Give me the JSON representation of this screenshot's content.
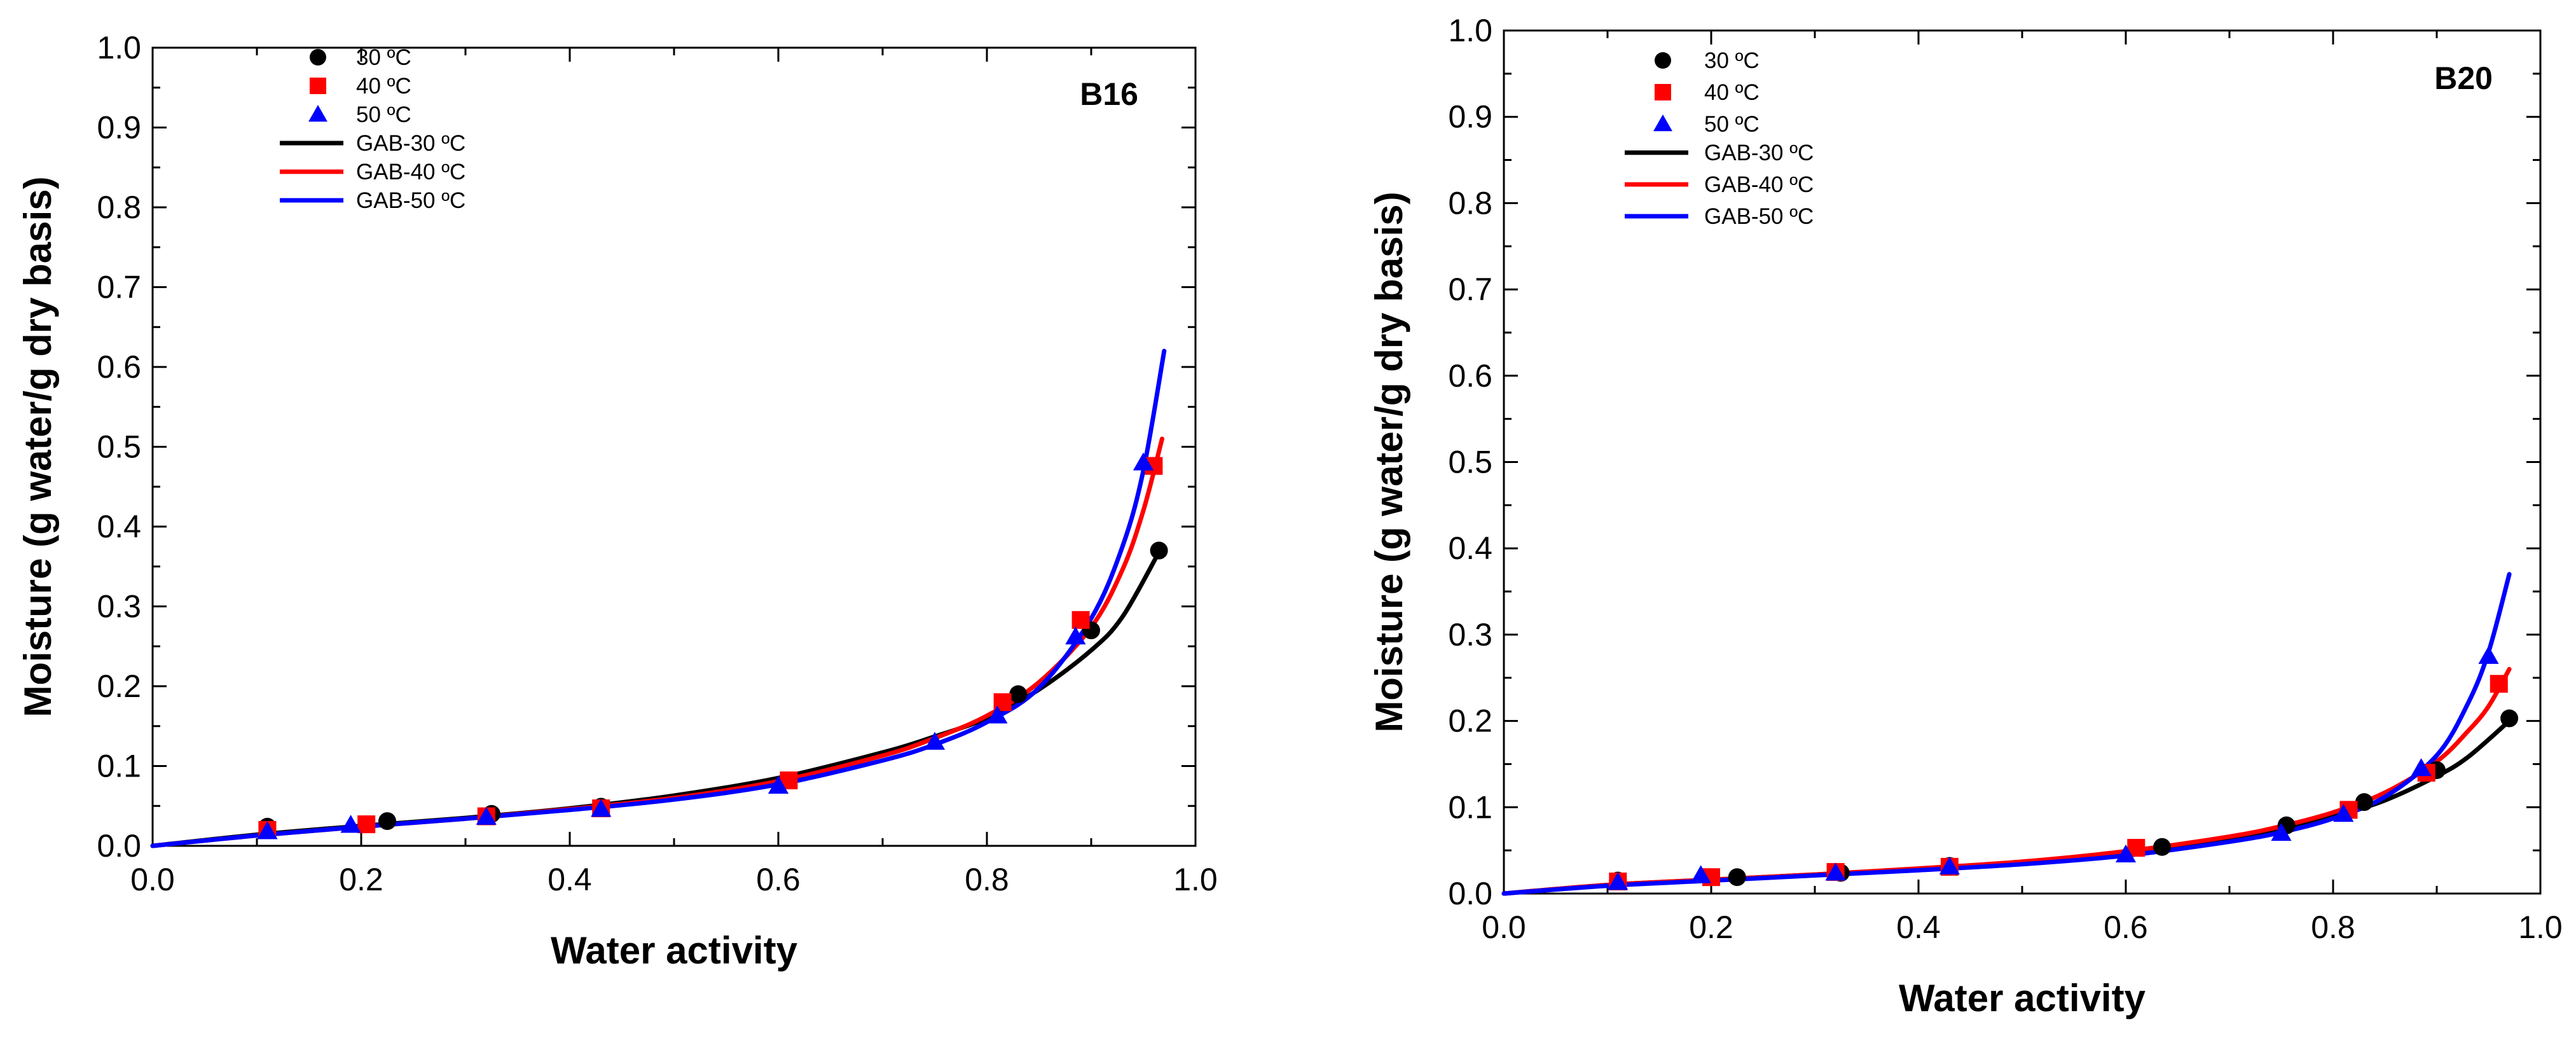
{
  "chart_data": [
    {
      "type": "scatter",
      "panel_label": "B16",
      "xlabel": "Water activity",
      "ylabel": "Moisture (g water/g dry basis)",
      "xlim": [
        0.0,
        1.0
      ],
      "ylim": [
        0.0,
        1.0
      ],
      "xticks": [
        "0.0",
        "0.2",
        "0.4",
        "0.6",
        "0.8",
        "1.0"
      ],
      "yticks": [
        "0.0",
        "0.1",
        "0.2",
        "0.3",
        "0.4",
        "0.5",
        "0.6",
        "0.7",
        "0.8",
        "0.9",
        "1.0"
      ],
      "legend_position": "top-left",
      "series": [
        {
          "name": "30 ºC",
          "kind": "points",
          "marker": "circle",
          "color": "#000000",
          "x": [
            0.11,
            0.225,
            0.325,
            0.43,
            0.83,
            0.9,
            0.965
          ],
          "y": [
            0.024,
            0.031,
            0.04,
            0.049,
            0.19,
            0.27,
            0.37
          ]
        },
        {
          "name": "40 ºC",
          "kind": "points",
          "marker": "square",
          "color": "#ff0000",
          "x": [
            0.11,
            0.205,
            0.32,
            0.43,
            0.61,
            0.815,
            0.89,
            0.96
          ],
          "y": [
            0.02,
            0.027,
            0.037,
            0.047,
            0.082,
            0.18,
            0.283,
            0.476
          ]
        },
        {
          "name": "50 ºC",
          "kind": "points",
          "marker": "triangle",
          "color": "#0000ff",
          "x": [
            0.11,
            0.19,
            0.32,
            0.43,
            0.6,
            0.75,
            0.81,
            0.885,
            0.95
          ],
          "y": [
            0.018,
            0.026,
            0.036,
            0.046,
            0.075,
            0.13,
            0.163,
            0.262,
            0.48
          ]
        },
        {
          "name": "GAB-30 ºC",
          "kind": "line",
          "color": "#000000",
          "x": [
            0.0,
            0.1,
            0.2,
            0.3,
            0.4,
            0.5,
            0.6,
            0.7,
            0.75,
            0.8,
            0.85,
            0.9,
            0.93,
            0.965
          ],
          "y": [
            0.0,
            0.014,
            0.025,
            0.035,
            0.047,
            0.063,
            0.085,
            0.117,
            0.137,
            0.16,
            0.196,
            0.245,
            0.287,
            0.368
          ]
        },
        {
          "name": "GAB-40 ºC",
          "kind": "line",
          "color": "#ff0000",
          "x": [
            0.0,
            0.1,
            0.2,
            0.3,
            0.4,
            0.5,
            0.6,
            0.7,
            0.75,
            0.8,
            0.85,
            0.9,
            0.93,
            0.95,
            0.968
          ],
          "y": [
            0.0,
            0.013,
            0.024,
            0.034,
            0.046,
            0.06,
            0.081,
            0.113,
            0.135,
            0.163,
            0.205,
            0.274,
            0.346,
            0.42,
            0.51
          ]
        },
        {
          "name": "GAB-50 ºC",
          "kind": "line",
          "color": "#0000ff",
          "x": [
            0.0,
            0.1,
            0.2,
            0.3,
            0.4,
            0.5,
            0.6,
            0.7,
            0.75,
            0.8,
            0.85,
            0.9,
            0.93,
            0.95,
            0.97
          ],
          "y": [
            0.0,
            0.013,
            0.024,
            0.034,
            0.045,
            0.058,
            0.077,
            0.107,
            0.127,
            0.155,
            0.198,
            0.285,
            0.375,
            0.47,
            0.62
          ]
        }
      ]
    },
    {
      "type": "scatter",
      "panel_label": "B20",
      "xlabel": "Water activity",
      "ylabel": "Moisture (g water/g dry basis)",
      "xlim": [
        0.0,
        1.0
      ],
      "ylim": [
        0.0,
        1.0
      ],
      "xticks": [
        "0.0",
        "0.2",
        "0.4",
        "0.6",
        "0.8",
        "1.0"
      ],
      "yticks": [
        "0.0",
        "0.1",
        "0.2",
        "0.3",
        "0.4",
        "0.5",
        "0.6",
        "0.7",
        "0.8",
        "0.9",
        "1.0"
      ],
      "legend_position": "top-left",
      "series": [
        {
          "name": "30 ºC",
          "kind": "points",
          "marker": "circle",
          "color": "#000000",
          "x": [
            0.11,
            0.225,
            0.325,
            0.43,
            0.635,
            0.755,
            0.83,
            0.9,
            0.97
          ],
          "y": [
            0.015,
            0.019,
            0.024,
            0.032,
            0.054,
            0.079,
            0.106,
            0.143,
            0.203
          ]
        },
        {
          "name": "40 ºC",
          "kind": "points",
          "marker": "square",
          "color": "#ff0000",
          "x": [
            0.11,
            0.2,
            0.32,
            0.43,
            0.61,
            0.815,
            0.89,
            0.96
          ],
          "y": [
            0.014,
            0.019,
            0.025,
            0.031,
            0.053,
            0.097,
            0.14,
            0.243
          ]
        },
        {
          "name": "50 ºC",
          "kind": "points",
          "marker": "triangle",
          "color": "#0000ff",
          "x": [
            0.11,
            0.19,
            0.32,
            0.43,
            0.6,
            0.75,
            0.81,
            0.885,
            0.95
          ],
          "y": [
            0.013,
            0.021,
            0.024,
            0.031,
            0.045,
            0.07,
            0.092,
            0.145,
            0.275
          ]
        },
        {
          "name": "GAB-30 ºC",
          "kind": "line",
          "color": "#000000",
          "x": [
            0.0,
            0.1,
            0.2,
            0.3,
            0.4,
            0.5,
            0.6,
            0.7,
            0.75,
            0.8,
            0.85,
            0.9,
            0.93,
            0.97
          ],
          "y": [
            0.0,
            0.01,
            0.016,
            0.022,
            0.028,
            0.036,
            0.047,
            0.063,
            0.074,
            0.089,
            0.108,
            0.136,
            0.158,
            0.2
          ]
        },
        {
          "name": "GAB-40 ºC",
          "kind": "line",
          "color": "#ff0000",
          "x": [
            0.0,
            0.1,
            0.2,
            0.3,
            0.4,
            0.5,
            0.6,
            0.7,
            0.75,
            0.8,
            0.85,
            0.9,
            0.93,
            0.95,
            0.97
          ],
          "y": [
            0.0,
            0.01,
            0.016,
            0.022,
            0.029,
            0.037,
            0.049,
            0.066,
            0.078,
            0.094,
            0.117,
            0.153,
            0.188,
            0.217,
            0.26
          ]
        },
        {
          "name": "GAB-50 ºC",
          "kind": "line",
          "color": "#0000ff",
          "x": [
            0.0,
            0.1,
            0.2,
            0.3,
            0.4,
            0.5,
            0.6,
            0.7,
            0.75,
            0.8,
            0.85,
            0.9,
            0.93,
            0.95,
            0.97
          ],
          "y": [
            0.0,
            0.009,
            0.015,
            0.021,
            0.027,
            0.034,
            0.044,
            0.06,
            0.071,
            0.087,
            0.112,
            0.16,
            0.22,
            0.28,
            0.37
          ]
        }
      ]
    }
  ]
}
